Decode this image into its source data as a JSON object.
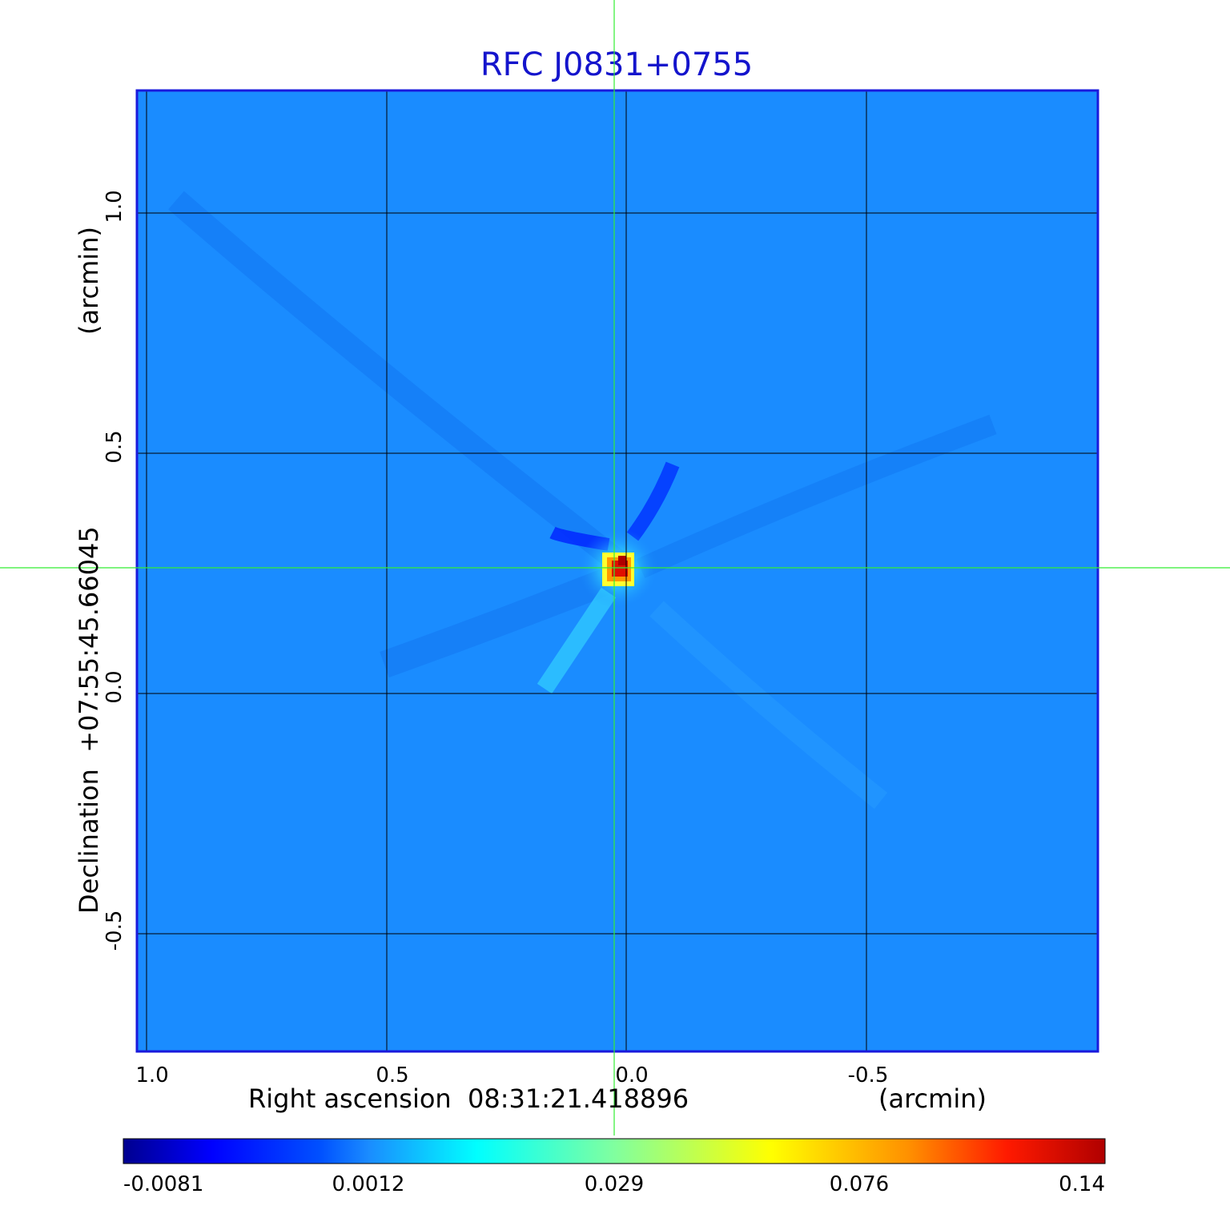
{
  "chart_data": {
    "type": "heatmap",
    "title": "RFC J0831+0755",
    "xlabel": "Right ascension  08:31:21.418896",
    "xunit": "(arcmin)",
    "ylabel": "Declination  +07:55:45.66045",
    "yunit": "(arcmin)",
    "xlim": [
      1.02,
      -0.98
    ],
    "ylim": [
      -0.75,
      1.25
    ],
    "x_ticks": [
      1.0,
      0.5,
      0.0,
      -0.5
    ],
    "x_tick_labels": [
      "1.0",
      "0.5",
      "0.0",
      "-0.5"
    ],
    "y_ticks": [
      1.0,
      0.5,
      0.0,
      -0.5
    ],
    "y_tick_labels": [
      "1.0",
      "0.5",
      "0.0",
      "-0.5"
    ],
    "grid": true,
    "crosshair": {
      "x": 0.025,
      "y": 0.26
    },
    "source_peak": {
      "x": 0.0,
      "y": 0.26,
      "value": 0.14
    },
    "colormap": "jet",
    "colorbar": {
      "location": "bottom",
      "tick_labels": [
        "-0.0081",
        "0.0012",
        "0.029",
        "0.076",
        "0.14"
      ],
      "values": [
        -0.0081,
        0.0012,
        0.029,
        0.076,
        0.14
      ]
    },
    "colors": {
      "title": "#1414cc",
      "frame": "#1a1adc",
      "background": "#1a8cff",
      "grid": "#000000",
      "crosshair": "#33ee33"
    }
  }
}
